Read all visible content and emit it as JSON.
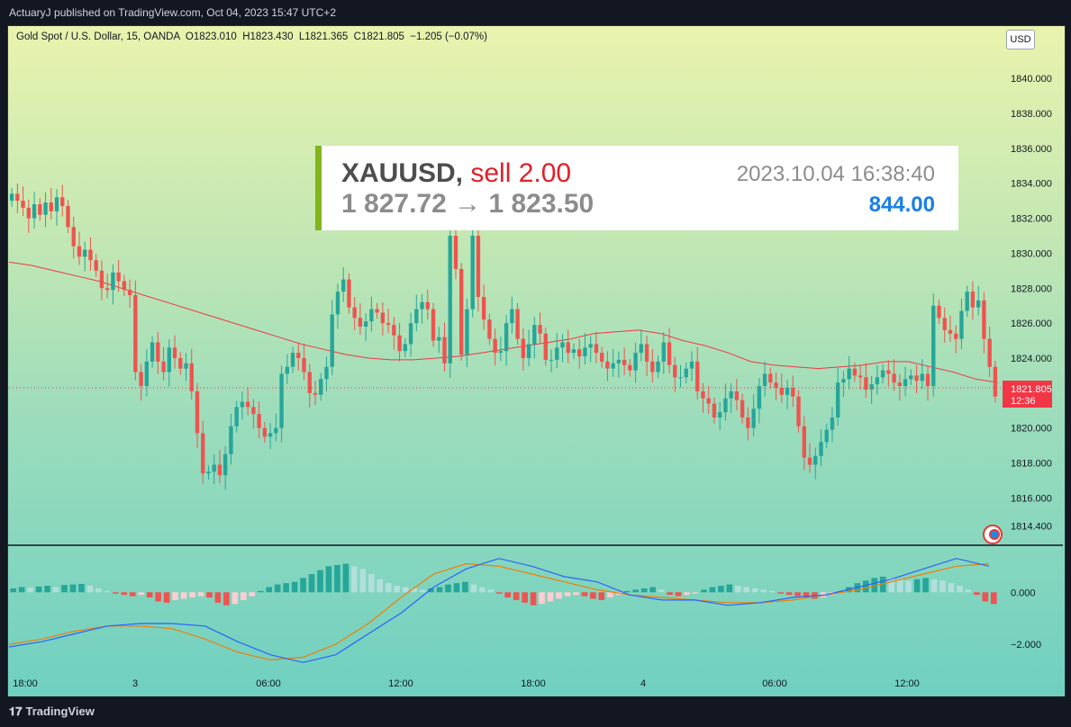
{
  "header": {
    "published_line": "ActuaryJ published on TradingView.com, Oct 04, 2023 15:47 UTC+2"
  },
  "legend": {
    "text": "Gold Spot / U.S. Dollar, 15, OANDA  O1823.010  H1823.430  L1821.365  C1821.805  −1.205 (−0.07%)"
  },
  "currency_button": "USD",
  "trade_overlay": {
    "symbol": "XAUUSD,",
    "side": "sell 2.00",
    "price_range": "1 827.72 → 1 823.50",
    "datetime": "2023.10.04 16:38:40",
    "pnl": "844.00",
    "side_color": "#e0202a",
    "pnl_color": "#1a7ee6",
    "bar_color": "#7fb51d"
  },
  "price_axis": {
    "ticks": [
      "1840.000",
      "1838.000",
      "1836.000",
      "1834.000",
      "1832.000",
      "1830.000",
      "1828.000",
      "1826.000",
      "1824.000",
      "1822.000",
      "1820.000",
      "1818.000",
      "1816.000",
      "1814.400"
    ]
  },
  "last_price": {
    "value": "1821.805",
    "countdown": "12:36",
    "color": "#f23645"
  },
  "osc_axis": {
    "ticks": [
      "0.000",
      "−2.000"
    ]
  },
  "time_axis": {
    "ticks": [
      "18:00",
      "3",
      "06:00",
      "12:00",
      "18:00",
      "4",
      "06:00",
      "12:00"
    ]
  },
  "footer": {
    "brand": "TradingView"
  },
  "chart_data": {
    "type": "candlestick",
    "symbol": "Gold Spot / U.S. Dollar",
    "timeframe": "15",
    "colors": {
      "up": "#26a69a",
      "down": "#ef5350",
      "ma": "#f23645"
    },
    "ohlc_close_series": [
      1833.4,
      1833.0,
      1832.6,
      1832.0,
      1832.8,
      1832.2,
      1832.9,
      1832.4,
      1833.2,
      1832.7,
      1831.5,
      1830.4,
      1829.8,
      1830.2,
      1829.6,
      1829.0,
      1828.0,
      1827.9,
      1828.9,
      1828.4,
      1827.9,
      1827.6,
      1823.2,
      1822.4,
      1823.8,
      1824.9,
      1823.8,
      1823.2,
      1824.6,
      1824.0,
      1823.4,
      1823.7,
      1822.1,
      1819.7,
      1817.4,
      1817.5,
      1817.9,
      1817.3,
      1818.5,
      1820.1,
      1821.2,
      1821.5,
      1821.2,
      1820.8,
      1820.0,
      1819.5,
      1819.7,
      1820.0,
      1823.1,
      1823.5,
      1824.3,
      1824.0,
      1823.2,
      1822.0,
      1821.9,
      1822.8,
      1823.5,
      1826.5,
      1827.8,
      1828.5,
      1826.9,
      1826.3,
      1825.8,
      1826.1,
      1826.8,
      1826.6,
      1826.0,
      1825.9,
      1825.3,
      1824.4,
      1824.8,
      1826.0,
      1826.8,
      1827.2,
      1826.8,
      1825.0,
      1825.2,
      1823.7,
      1831.0,
      1829.1,
      1824.2,
      1826.8,
      1831.0,
      1827.5,
      1826.2,
      1825.1,
      1824.3,
      1824.4,
      1826.0,
      1826.8,
      1825.1,
      1824.0,
      1824.8,
      1825.9,
      1825.4,
      1823.9,
      1823.9,
      1824.6,
      1824.9,
      1824.3,
      1824.5,
      1824.1,
      1824.6,
      1824.8,
      1824.3,
      1823.8,
      1823.4,
      1823.7,
      1823.9,
      1823.6,
      1823.3,
      1824.3,
      1824.8,
      1823.8,
      1823.2,
      1823.8,
      1824.9,
      1823.6,
      1822.9,
      1822.9,
      1823.4,
      1823.8,
      1822.1,
      1821.7,
      1821.4,
      1820.6,
      1820.9,
      1821.7,
      1822.1,
      1821.6,
      1820.6,
      1820.0,
      1821.1,
      1822.4,
      1823.1,
      1822.6,
      1822.3,
      1821.9,
      1822.3,
      1821.8,
      1820.1,
      1818.3,
      1817.9,
      1818.4,
      1819.2,
      1819.9,
      1820.6,
      1822.6,
      1822.8,
      1823.4,
      1823.0,
      1822.9,
      1822.2,
      1822.5,
      1822.9,
      1823.3,
      1823.1,
      1822.6,
      1822.4,
      1822.8,
      1823.0,
      1822.7,
      1823.1,
      1822.4,
      1827.0,
      1826.3,
      1825.6,
      1825.4,
      1825.1,
      1826.7,
      1827.8,
      1826.9,
      1827.3,
      1825.1,
      1823.5,
      1821.8
    ],
    "ma_series": [
      1829.5,
      1829.3,
      1829.0,
      1828.7,
      1828.4,
      1828.0,
      1827.6,
      1827.2,
      1826.8,
      1826.4,
      1826.0,
      1825.6,
      1825.2,
      1824.8,
      1824.5,
      1824.2,
      1824.0,
      1823.9,
      1823.9,
      1824.0,
      1824.1,
      1824.3,
      1824.5,
      1824.7,
      1824.9,
      1825.1,
      1825.4,
      1825.5,
      1825.6,
      1825.4,
      1825.0,
      1824.7,
      1824.3,
      1823.8,
      1823.6,
      1823.5,
      1823.4,
      1823.5,
      1823.6,
      1823.8,
      1823.8,
      1823.5,
      1823.2,
      1822.8,
      1822.6
    ],
    "ylim": [
      1813.6,
      1841.4
    ],
    "oscillator": {
      "type": "macd",
      "histogram": [
        0.15,
        0.2,
        0.18,
        0.22,
        0.25,
        0.2,
        0.28,
        0.3,
        0.32,
        0.25,
        0.15,
        0.05,
        -0.05,
        -0.1,
        -0.15,
        -0.1,
        -0.2,
        -0.35,
        -0.4,
        -0.3,
        -0.25,
        -0.2,
        -0.15,
        -0.2,
        -0.4,
        -0.5,
        -0.45,
        -0.3,
        -0.15,
        0.05,
        0.2,
        0.3,
        0.35,
        0.4,
        0.55,
        0.7,
        0.85,
        1.0,
        1.05,
        1.1,
        1.0,
        0.9,
        0.7,
        0.5,
        0.35,
        0.25,
        0.2,
        0.15,
        0.1,
        0.15,
        0.2,
        0.3,
        0.35,
        0.4,
        0.3,
        0.2,
        0.1,
        -0.05,
        -0.2,
        -0.3,
        -0.4,
        -0.5,
        -0.45,
        -0.35,
        -0.25,
        -0.15,
        -0.1,
        -0.15,
        -0.25,
        -0.3,
        -0.2,
        -0.1,
        0.05,
        0.1,
        0.15,
        0.2,
        0.1,
        -0.1,
        -0.15,
        -0.1,
        -0.05,
        0.1,
        0.2,
        0.25,
        0.3,
        0.25,
        0.2,
        0.15,
        0.1,
        0.05,
        -0.05,
        -0.1,
        -0.15,
        -0.2,
        -0.25,
        -0.2,
        -0.1,
        0.05,
        0.2,
        0.35,
        0.45,
        0.55,
        0.6,
        0.55,
        0.5,
        0.45,
        0.5,
        0.55,
        0.5,
        0.45,
        0.35,
        0.25,
        0.1,
        -0.1,
        -0.35,
        -0.45
      ],
      "macd_line": [
        -2.1,
        -1.9,
        -1.6,
        -1.3,
        -1.2,
        -1.2,
        -1.3,
        -1.9,
        -2.4,
        -2.7,
        -2.4,
        -1.6,
        -0.8,
        0.2,
        0.9,
        1.3,
        1.0,
        0.6,
        0.4,
        -0.1,
        -0.3,
        -0.3,
        -0.5,
        -0.4,
        -0.2,
        -0.1,
        0.2,
        0.5,
        0.9,
        1.3,
        1.0
      ],
      "signal_line": [
        -2.0,
        -1.8,
        -1.5,
        -1.3,
        -1.3,
        -1.4,
        -1.8,
        -2.3,
        -2.6,
        -2.5,
        -2.0,
        -1.2,
        -0.2,
        0.7,
        1.1,
        1.0,
        0.7,
        0.4,
        0.1,
        -0.1,
        -0.2,
        -0.3,
        -0.4,
        -0.4,
        -0.3,
        -0.1,
        0.1,
        0.4,
        0.7,
        1.0,
        1.1
      ],
      "ylim": [
        -3.0,
        1.6
      ],
      "line_colors": {
        "macd": "#2962ff",
        "signal": "#f57c00"
      }
    }
  }
}
